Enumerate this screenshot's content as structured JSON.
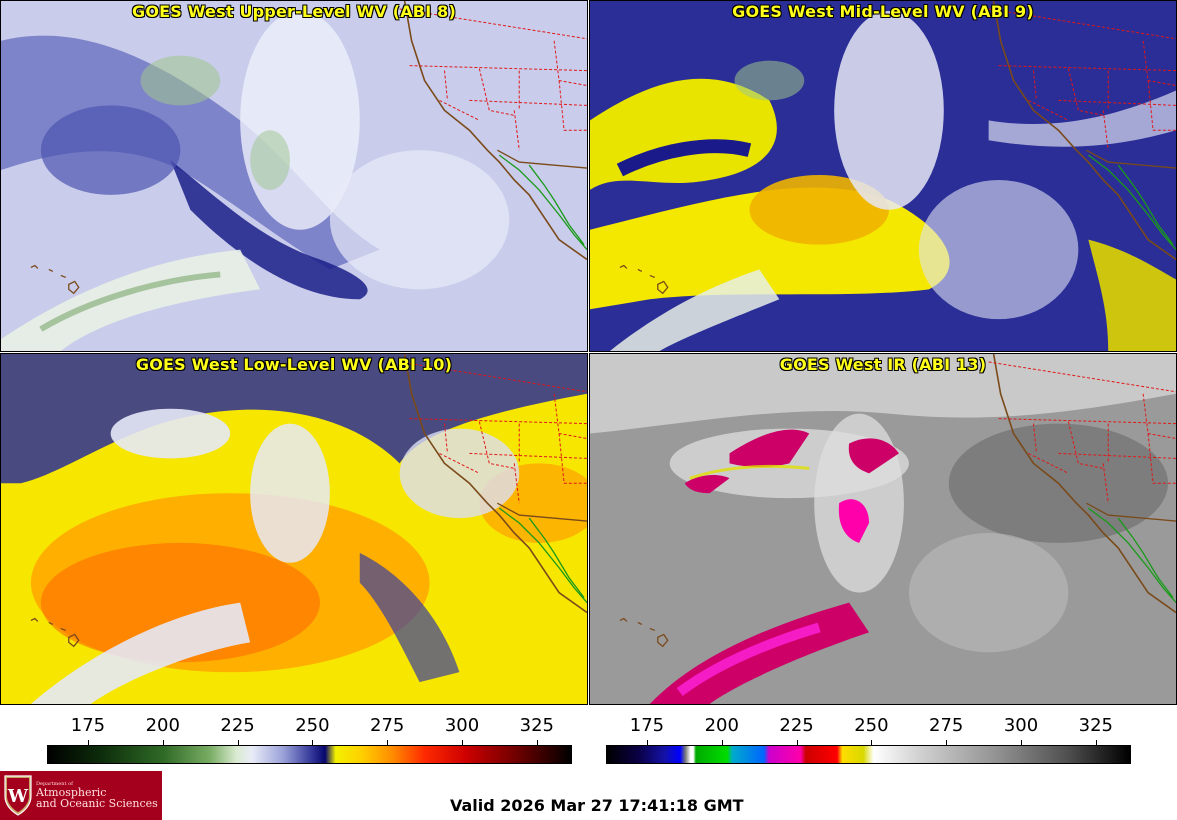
{
  "panels": [
    {
      "id": "upper",
      "title": "GOES West Upper-Level WV (ABI 8)"
    },
    {
      "id": "mid",
      "title": "GOES West Mid-Level WV (ABI 9)"
    },
    {
      "id": "low",
      "title": "GOES West Low-Level WV (ABI 10)"
    },
    {
      "id": "ir",
      "title": "GOES West IR (ABI 13)"
    }
  ],
  "colorbars": {
    "wv": {
      "ticks": [
        "175",
        "200",
        "225",
        "250",
        "275",
        "300",
        "325"
      ],
      "colormap": "water-vapor"
    },
    "ir": {
      "ticks": [
        "175",
        "200",
        "225",
        "250",
        "275",
        "300",
        "325"
      ],
      "colormap": "infrared"
    }
  },
  "logo": {
    "line_small": "Department of",
    "line1": "Atmospheric",
    "line2": "and Oceanic Sciences",
    "crest_letter": "W",
    "color": "#a4001d"
  },
  "valid_time": "Valid 2026 Mar 27 17:41:18 GMT",
  "colors": {
    "title": "#ffff1a",
    "border": "#000000"
  }
}
